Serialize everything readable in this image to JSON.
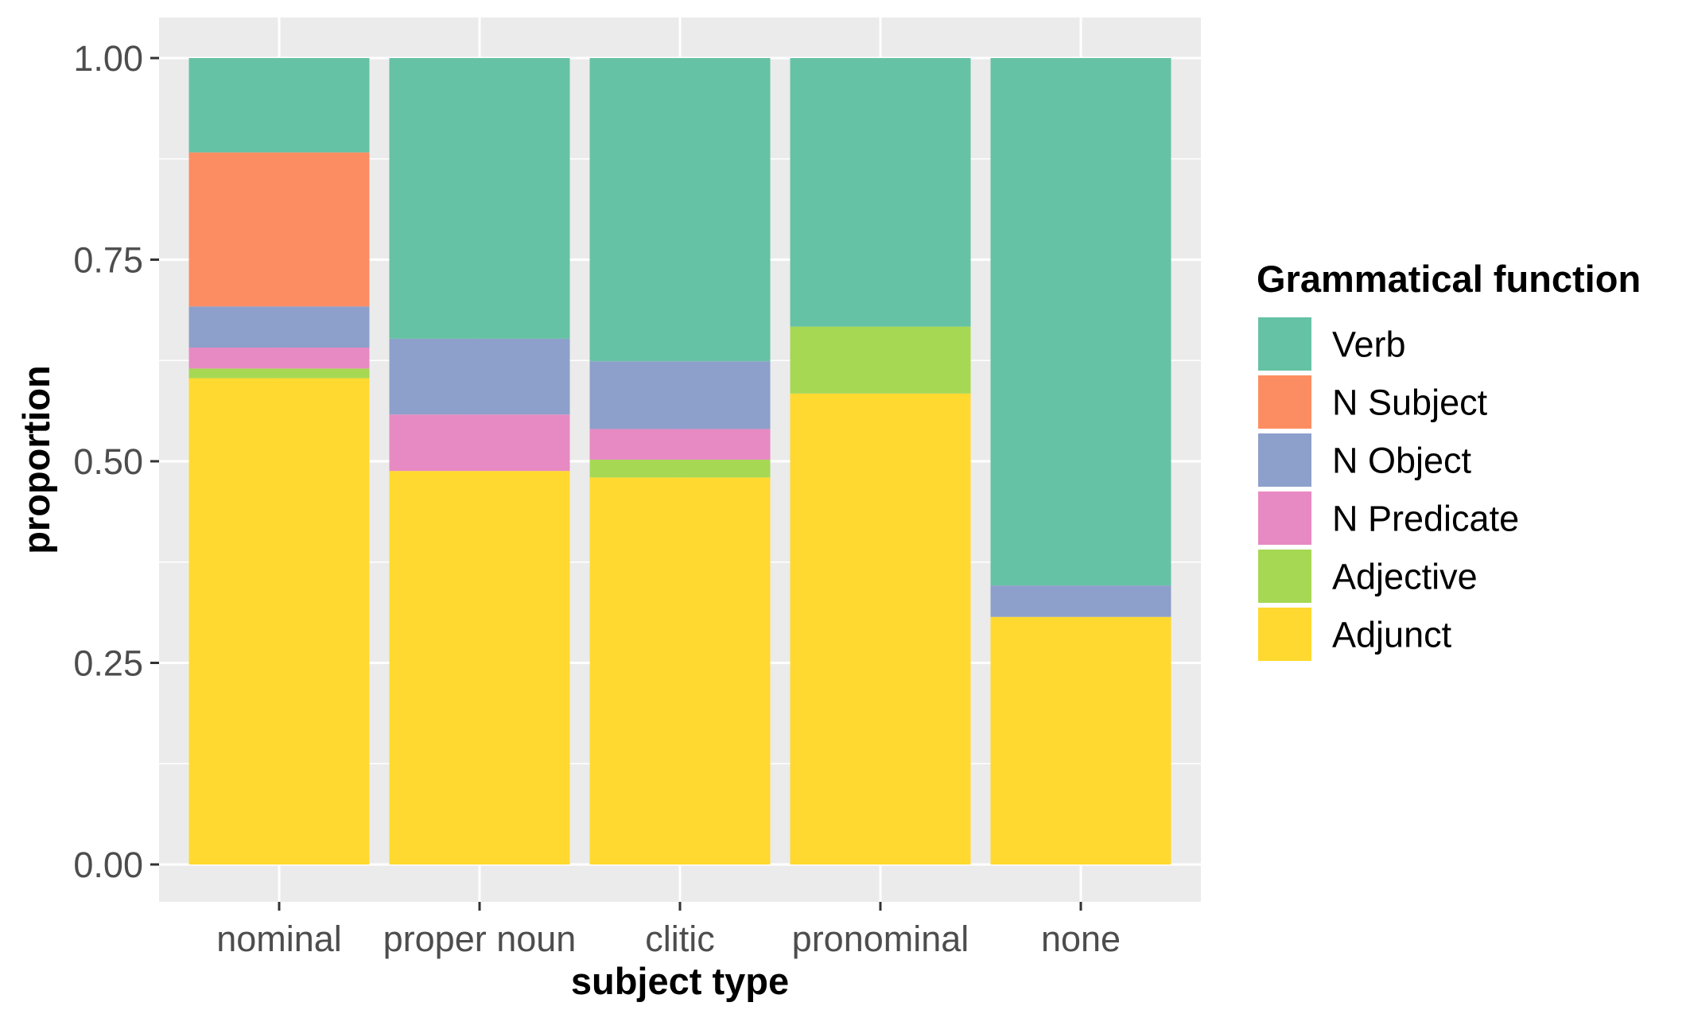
{
  "chart_data": {
    "type": "bar",
    "stacked": true,
    "categories": [
      "nominal",
      "proper noun",
      "clitic",
      "pronominal",
      "none"
    ],
    "series": [
      {
        "name": "Adjunct",
        "color": "#FFD92F",
        "values": [
          0.603,
          0.488,
          0.48,
          0.584,
          0.307
        ]
      },
      {
        "name": "Adjective",
        "color": "#A6D854",
        "values": [
          0.012,
          0.0,
          0.022,
          0.083,
          0.0
        ]
      },
      {
        "name": "N Predicate",
        "color": "#E78AC3",
        "values": [
          0.026,
          0.07,
          0.038,
          0.0,
          0.0
        ]
      },
      {
        "name": "N Object",
        "color": "#8DA0CB",
        "values": [
          0.051,
          0.094,
          0.084,
          0.0,
          0.039
        ]
      },
      {
        "name": "N Subject",
        "color": "#FC8D62",
        "values": [
          0.191,
          0.0,
          0.0,
          0.0,
          0.0
        ]
      },
      {
        "name": "Verb",
        "color": "#66C2A5",
        "values": [
          0.117,
          0.348,
          0.376,
          0.333,
          0.654
        ]
      }
    ],
    "xlabel": "subject type",
    "ylabel": "proportion",
    "ylim": [
      0,
      1
    ],
    "yticks": [
      0,
      0.25,
      0.5,
      0.75,
      1
    ],
    "ytick_labels": [
      "0.00",
      "0.25",
      "0.50",
      "0.75",
      "1.00"
    ],
    "grid": true,
    "legend": {
      "title": "Grammatical function",
      "placement": "right",
      "entries": [
        "Verb",
        "N Subject",
        "N Object",
        "N Predicate",
        "Adjective",
        "Adjunct"
      ]
    }
  }
}
